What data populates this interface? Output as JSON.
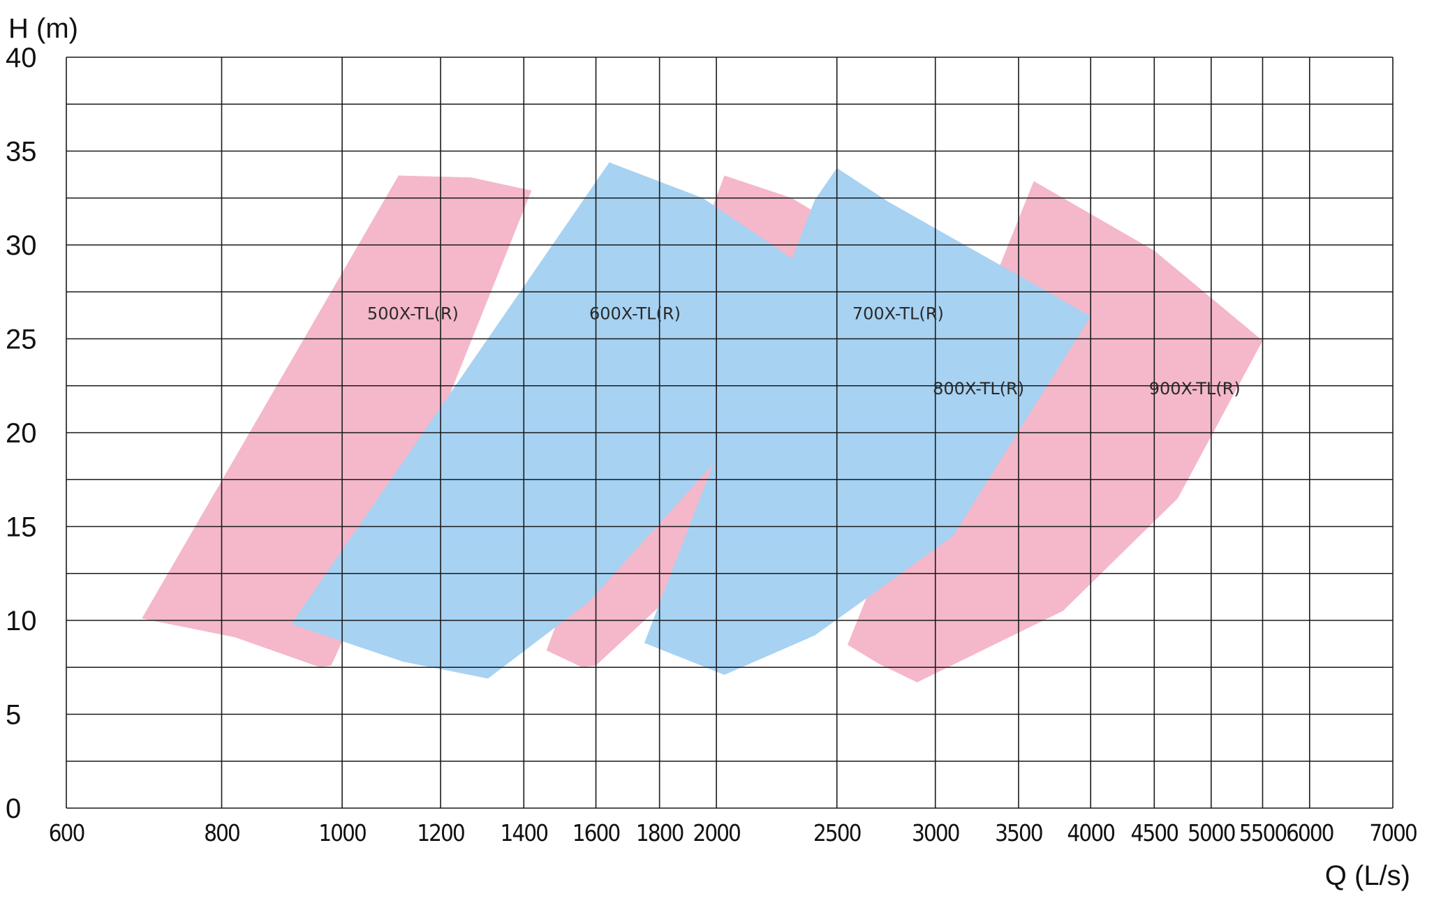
{
  "chart_data": {
    "type": "area",
    "xlabel": "Q (L/s)",
    "ylabel": "H (m)",
    "x_scale": "log",
    "xlim": [
      600,
      7000
    ],
    "ylim": [
      0,
      40
    ],
    "grid": true,
    "x_ticks": [
      600,
      800,
      1000,
      1200,
      1400,
      1600,
      1800,
      2000,
      2500,
      3000,
      3500,
      4000,
      4500,
      5000,
      5500,
      6000,
      7000
    ],
    "x_tick_labels": [
      "600",
      "800",
      "1000",
      "1200",
      "1400",
      "1600",
      "1800",
      "2000",
      "2500",
      "3000",
      "3500",
      "4000",
      "4500",
      "5000",
      "5500",
      "6000",
      "7000"
    ],
    "y_ticks": [
      0,
      5,
      10,
      15,
      20,
      25,
      30,
      35,
      40
    ],
    "y_tick_labels": [
      "0",
      "5",
      "10",
      "15",
      "20",
      "25",
      "30",
      "35",
      "40"
    ],
    "colors": {
      "pink": "#f4b8ca",
      "blue": "#a7d2f2",
      "grid": "#1a1a1a"
    },
    "series": [
      {
        "name": "500X-TL(R)",
        "color": "#f4b8ca",
        "label_at": [
          1140,
          26.3
        ],
        "polygon": [
          [
            690,
            10.1
          ],
          [
            1110,
            33.7
          ],
          [
            1270,
            33.6
          ],
          [
            1420,
            32.9
          ],
          [
            1130,
            16.5
          ],
          [
            980,
            7.6
          ],
          [
            960,
            7.5
          ],
          [
            820,
            9.1
          ],
          [
            690,
            10.1
          ]
        ]
      },
      {
        "name": "700X-TL(R)",
        "color": "#f4b8ca",
        "label_at": [
          2800,
          26.3
        ],
        "polygon": [
          [
            2030,
            33.7
          ],
          [
            2300,
            32.5
          ],
          [
            3250,
            26.5
          ],
          [
            1600,
            7.6
          ],
          [
            1560,
            7.5
          ],
          [
            1460,
            8.4
          ],
          [
            2030,
            33.7
          ]
        ]
      },
      {
        "name": "900X-TL(R)",
        "color": "#f4b8ca",
        "label_at": [
          4850,
          22.3
        ],
        "polygon": [
          [
            3600,
            33.4
          ],
          [
            4500,
            29.7
          ],
          [
            5500,
            24.9
          ],
          [
            4700,
            16.5
          ],
          [
            3800,
            10.5
          ],
          [
            2900,
            6.7
          ],
          [
            2700,
            7.7
          ],
          [
            2550,
            8.7
          ],
          [
            3600,
            33.4
          ]
        ]
      },
      {
        "name": "600X-TL(R)",
        "color": "#a7d2f2",
        "label_at": [
          1720,
          26.3
        ],
        "polygon": [
          [
            1640,
            34.4
          ],
          [
            1950,
            32.5
          ],
          [
            2600,
            26.9
          ],
          [
            1580,
            11.0
          ],
          [
            1310,
            6.9
          ],
          [
            1120,
            7.8
          ],
          [
            910,
            9.8
          ],
          [
            1640,
            34.4
          ]
        ]
      },
      {
        "name": "800X-TL(R)",
        "color": "#a7d2f2",
        "label_at": [
          3250,
          22.3
        ],
        "polygon": [
          [
            2500,
            34.1
          ],
          [
            2750,
            32.3
          ],
          [
            4000,
            26.2
          ],
          [
            3100,
            14.5
          ],
          [
            2400,
            9.2
          ],
          [
            2030,
            7.1
          ],
          [
            1750,
            8.8
          ],
          [
            2400,
            32.4
          ],
          [
            2500,
            34.1
          ]
        ]
      }
    ]
  }
}
